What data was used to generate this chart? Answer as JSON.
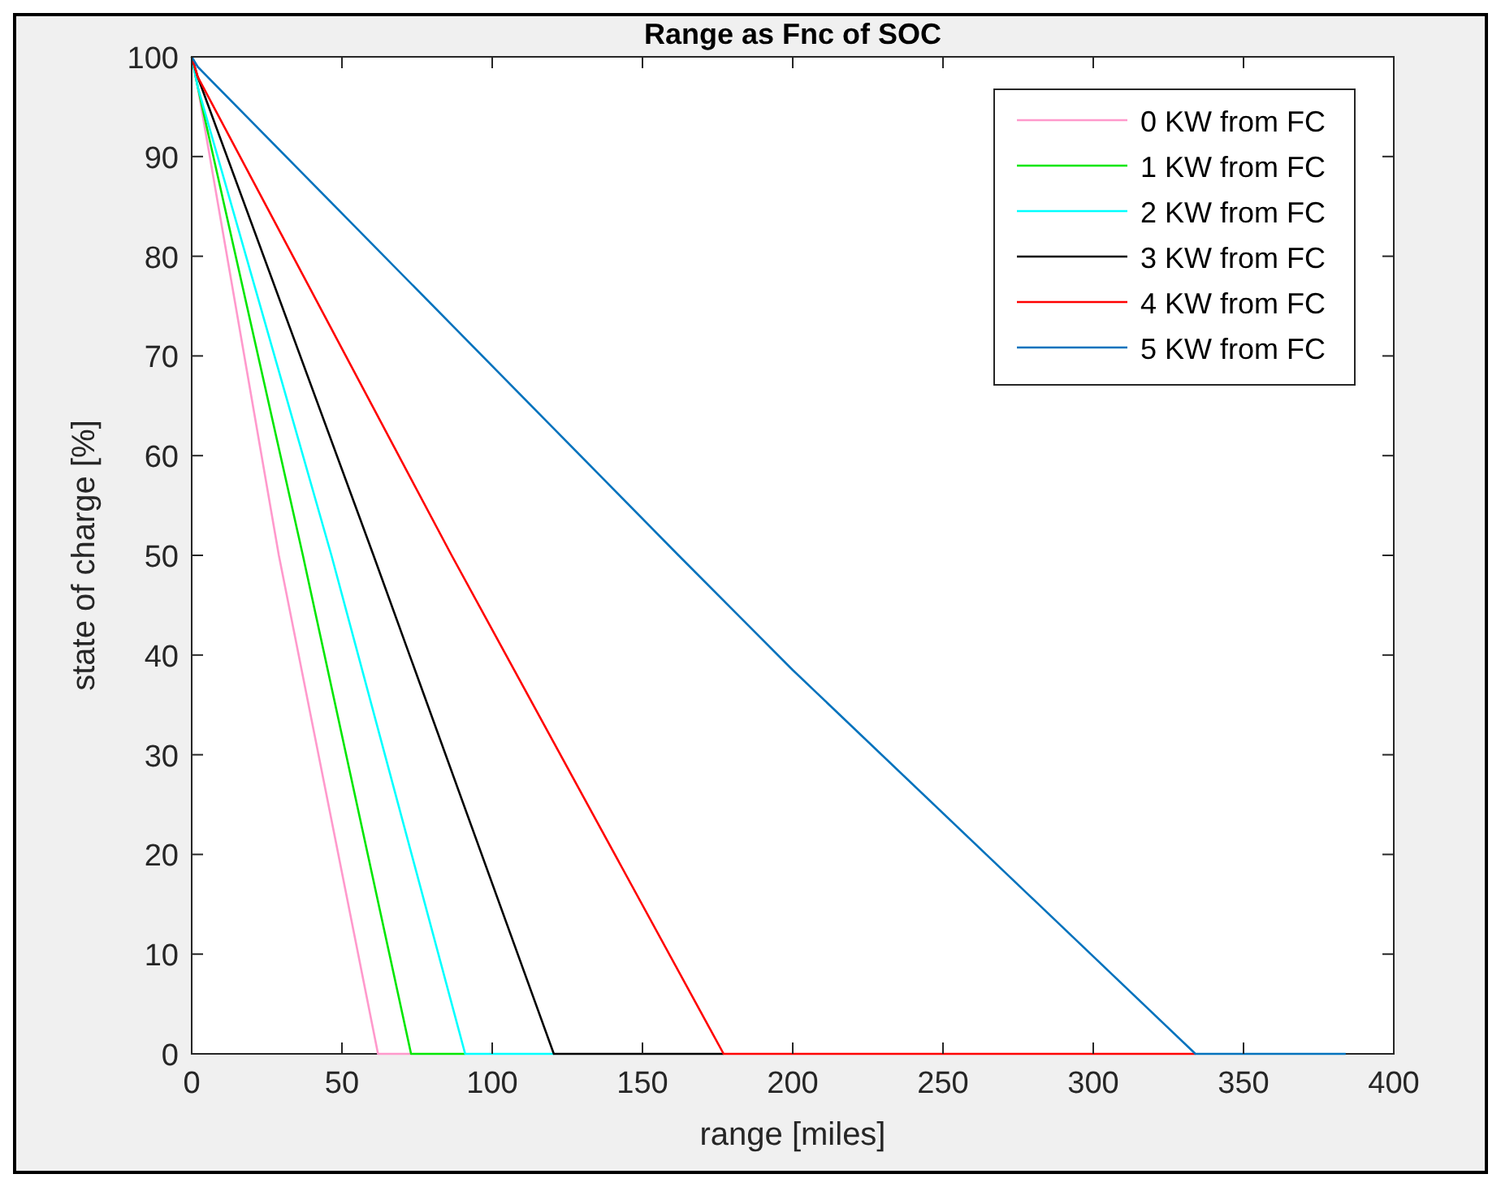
{
  "chart_data": {
    "type": "line",
    "title": "Range as Fnc of SOC",
    "xlabel": "range [miles]",
    "ylabel": "state of charge [%]",
    "xlim": [
      0,
      400
    ],
    "ylim": [
      0,
      100
    ],
    "xticks": [
      0,
      50,
      100,
      150,
      200,
      250,
      300,
      350,
      400
    ],
    "yticks": [
      0,
      10,
      20,
      30,
      40,
      50,
      60,
      70,
      80,
      90,
      100
    ],
    "grid": false,
    "legend": "top right",
    "line_style": "solid",
    "marker": "none",
    "series": [
      {
        "name": "0 KW from FC",
        "color": "#ff99cc",
        "x": [
          0,
          2,
          29,
          62,
          73
        ],
        "values": [
          100,
          97,
          50,
          0,
          0
        ]
      },
      {
        "name": "1 KW from FC",
        "color": "#00e600",
        "x": [
          0,
          2,
          37,
          73,
          91
        ],
        "values": [
          100,
          97,
          50,
          0,
          0
        ]
      },
      {
        "name": "2 KW from FC",
        "color": "#00ffff",
        "x": [
          0,
          2,
          46.5,
          91,
          120.5
        ],
        "values": [
          100,
          97,
          50,
          0,
          0
        ]
      },
      {
        "name": "3 KW from FC",
        "color": "#000000",
        "x": [
          0,
          2,
          60.5,
          120.5,
          177
        ],
        "values": [
          100,
          98,
          50,
          0,
          0
        ]
      },
      {
        "name": "4 KW from FC",
        "color": "#ff0000",
        "x": [
          0,
          2,
          86.5,
          177,
          334
        ],
        "values": [
          100,
          98,
          50,
          0,
          0
        ]
      },
      {
        "name": "5 KW from FC",
        "color": "#0072bd",
        "x": [
          0,
          2,
          162,
          200,
          334,
          384
        ],
        "values": [
          100,
          99,
          50,
          38.5,
          0,
          0
        ]
      }
    ]
  }
}
